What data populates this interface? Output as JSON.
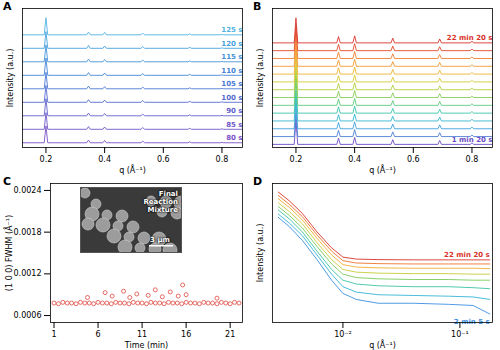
{
  "chart_data": [
    {
      "panel": "A",
      "type": "waterfall",
      "x_label": "q (Å⁻¹)",
      "y_label": "Intensity (a.u.)",
      "tick_labels": "x",
      "xlim": [
        0.12,
        0.87
      ],
      "xticks": [
        0.2,
        0.4,
        0.6,
        0.8
      ],
      "ylim": [
        -0.3,
        10
      ],
      "x": [
        0.12,
        0.194,
        0.2,
        0.206,
        0.339,
        0.345,
        0.351,
        0.394,
        0.4,
        0.406,
        0.524,
        0.53,
        0.536,
        0.684,
        0.69,
        0.696,
        0.794,
        0.8,
        0.806,
        0.87
      ],
      "series": [
        {
          "name": "80 s",
          "color": "#7b52c7",
          "values": [
            0.05,
            0.05,
            1.3,
            0.05,
            0.05,
            0.25,
            0.05,
            0.05,
            0.22,
            0.05,
            0.05,
            0.18,
            0.05,
            0.05,
            0.12,
            0.05,
            0.05,
            0.08,
            0.05,
            0.05
          ]
        },
        {
          "name": "85 s",
          "color": "#7058c9",
          "values": [
            0.05,
            0.05,
            1.28,
            0.05,
            0.05,
            0.25,
            0.05,
            0.05,
            0.22,
            0.05,
            0.05,
            0.18,
            0.05,
            0.05,
            0.12,
            0.05,
            0.05,
            0.08,
            0.05,
            0.05
          ]
        },
        {
          "name": "90 s",
          "color": "#6262cc",
          "values": [
            0.05,
            0.05,
            1.32,
            0.05,
            0.05,
            0.25,
            0.05,
            0.05,
            0.22,
            0.05,
            0.05,
            0.18,
            0.05,
            0.05,
            0.12,
            0.05,
            0.05,
            0.08,
            0.05,
            0.05
          ]
        },
        {
          "name": "100 s",
          "color": "#566dd0",
          "values": [
            0.05,
            0.05,
            1.3,
            0.05,
            0.05,
            0.24,
            0.05,
            0.05,
            0.22,
            0.05,
            0.05,
            0.18,
            0.05,
            0.05,
            0.12,
            0.05,
            0.05,
            0.08,
            0.05,
            0.05
          ]
        },
        {
          "name": "105 s",
          "color": "#4b79d3",
          "values": [
            0.05,
            0.05,
            1.27,
            0.05,
            0.05,
            0.25,
            0.05,
            0.05,
            0.21,
            0.05,
            0.05,
            0.18,
            0.05,
            0.05,
            0.12,
            0.05,
            0.05,
            0.08,
            0.05,
            0.05
          ]
        },
        {
          "name": "110 s",
          "color": "#4686d6",
          "values": [
            0.05,
            0.05,
            1.33,
            0.05,
            0.05,
            0.25,
            0.05,
            0.05,
            0.22,
            0.05,
            0.05,
            0.17,
            0.05,
            0.05,
            0.12,
            0.05,
            0.05,
            0.08,
            0.05,
            0.05
          ]
        },
        {
          "name": "115 s",
          "color": "#4594d9",
          "values": [
            0.05,
            0.05,
            1.3,
            0.05,
            0.05,
            0.25,
            0.05,
            0.05,
            0.22,
            0.05,
            0.05,
            0.18,
            0.05,
            0.05,
            0.11,
            0.05,
            0.05,
            0.08,
            0.05,
            0.05
          ]
        },
        {
          "name": "120 s",
          "color": "#48a3dd",
          "values": [
            0.05,
            0.05,
            1.29,
            0.05,
            0.05,
            0.26,
            0.05,
            0.05,
            0.22,
            0.05,
            0.05,
            0.18,
            0.05,
            0.05,
            0.12,
            0.05,
            0.05,
            0.08,
            0.05,
            0.05
          ]
        },
        {
          "name": "125 s",
          "color": "#52b3e2",
          "values": [
            0.05,
            0.05,
            1.31,
            0.05,
            0.05,
            0.25,
            0.05,
            0.05,
            0.23,
            0.05,
            0.05,
            0.18,
            0.05,
            0.05,
            0.12,
            0.05,
            0.05,
            0.08,
            0.05,
            0.05
          ]
        }
      ]
    },
    {
      "panel": "B",
      "type": "waterfall",
      "x_label": "q (Å⁻¹)",
      "y_label": "Intensity (a.u.)",
      "tick_labels": "x",
      "xlim": [
        0.12,
        0.87
      ],
      "xticks": [
        0.2,
        0.4,
        0.6,
        0.8
      ],
      "ylim": [
        -0.3,
        17.5
      ],
      "x": [
        0.12,
        0.194,
        0.2,
        0.206,
        0.339,
        0.345,
        0.351,
        0.394,
        0.4,
        0.406,
        0.524,
        0.53,
        0.536,
        0.684,
        0.69,
        0.696,
        0.794,
        0.8,
        0.806,
        0.87
      ],
      "series": [
        {
          "name": "1 min 20 s",
          "color": "#6a4cc4",
          "values": [
            0.1,
            0.1,
            3.2,
            0.1,
            0.1,
            0.9,
            0.1,
            0.1,
            1.0,
            0.1,
            0.1,
            0.7,
            0.1,
            0.1,
            0.6,
            0.1,
            0.1,
            0.3,
            0.1,
            0.1
          ]
        },
        {
          "color": "#4f7fd6",
          "values": [
            0.1,
            0.1,
            3.1,
            0.1,
            0.1,
            0.9,
            0.1,
            0.1,
            1.0,
            0.1,
            0.1,
            0.7,
            0.1,
            0.1,
            0.6,
            0.1,
            0.1,
            0.3,
            0.1,
            0.1
          ]
        },
        {
          "color": "#3fa0dc",
          "values": [
            0.1,
            0.1,
            3.3,
            0.1,
            0.1,
            0.9,
            0.1,
            0.1,
            1.0,
            0.1,
            0.1,
            0.7,
            0.1,
            0.1,
            0.6,
            0.1,
            0.1,
            0.3,
            0.1,
            0.1
          ]
        },
        {
          "color": "#36b8cf",
          "values": [
            0.1,
            0.1,
            3.2,
            0.1,
            0.1,
            0.9,
            0.1,
            0.1,
            1.0,
            0.1,
            0.1,
            0.7,
            0.1,
            0.1,
            0.6,
            0.1,
            0.1,
            0.3,
            0.1,
            0.1
          ]
        },
        {
          "color": "#3cc4a8",
          "values": [
            0.1,
            0.1,
            3.0,
            0.1,
            0.1,
            0.9,
            0.1,
            0.1,
            1.0,
            0.1,
            0.1,
            0.7,
            0.1,
            0.1,
            0.6,
            0.1,
            0.1,
            0.3,
            0.1,
            0.1
          ]
        },
        {
          "color": "#5cc97c",
          "values": [
            0.1,
            0.1,
            3.4,
            0.1,
            0.1,
            0.9,
            0.1,
            0.1,
            1.0,
            0.1,
            0.1,
            0.7,
            0.1,
            0.1,
            0.6,
            0.1,
            0.1,
            0.3,
            0.1,
            0.1
          ]
        },
        {
          "color": "#86cd57",
          "values": [
            0.1,
            0.1,
            3.2,
            0.1,
            0.1,
            0.9,
            0.1,
            0.1,
            1.0,
            0.1,
            0.1,
            0.7,
            0.1,
            0.1,
            0.6,
            0.1,
            0.1,
            0.3,
            0.1,
            0.1
          ]
        },
        {
          "color": "#b2cf3e",
          "values": [
            0.1,
            0.1,
            3.1,
            0.1,
            0.1,
            0.9,
            0.1,
            0.1,
            1.0,
            0.1,
            0.1,
            0.7,
            0.1,
            0.1,
            0.6,
            0.1,
            0.1,
            0.3,
            0.1,
            0.1
          ]
        },
        {
          "color": "#d7c936",
          "values": [
            0.1,
            0.1,
            3.3,
            0.1,
            0.1,
            0.9,
            0.1,
            0.1,
            1.0,
            0.1,
            0.1,
            0.7,
            0.1,
            0.1,
            0.6,
            0.1,
            0.1,
            0.3,
            0.1,
            0.1
          ]
        },
        {
          "color": "#ecb434",
          "values": [
            0.1,
            0.1,
            3.2,
            0.1,
            0.1,
            0.9,
            0.1,
            0.1,
            1.0,
            0.1,
            0.1,
            0.7,
            0.1,
            0.1,
            0.6,
            0.1,
            0.1,
            0.3,
            0.1,
            0.1
          ]
        },
        {
          "color": "#f39a33",
          "values": [
            0.1,
            0.1,
            3.1,
            0.1,
            0.1,
            0.9,
            0.1,
            0.1,
            1.0,
            0.1,
            0.1,
            0.7,
            0.1,
            0.1,
            0.6,
            0.1,
            0.1,
            0.3,
            0.1,
            0.1
          ]
        },
        {
          "color": "#f2802f",
          "values": [
            0.1,
            0.1,
            3.3,
            0.1,
            0.1,
            0.9,
            0.1,
            0.1,
            1.0,
            0.1,
            0.1,
            0.7,
            0.1,
            0.1,
            0.6,
            0.1,
            0.1,
            0.3,
            0.1,
            0.1
          ]
        },
        {
          "color": "#e34a28",
          "values": [
            0.1,
            0.1,
            3.2,
            0.1,
            0.1,
            0.9,
            0.1,
            0.1,
            1.0,
            0.1,
            0.1,
            0.7,
            0.1,
            0.1,
            0.6,
            0.1,
            0.1,
            0.3,
            0.1,
            0.1
          ]
        },
        {
          "name": "22 min 20 s",
          "color": "#d8332a",
          "values": [
            0.1,
            0.1,
            3.3,
            0.1,
            0.1,
            0.9,
            0.1,
            0.1,
            1.0,
            0.1,
            0.1,
            0.7,
            0.1,
            0.1,
            0.6,
            0.1,
            0.1,
            0.3,
            0.1,
            0.1
          ]
        }
      ]
    },
    {
      "panel": "C",
      "type": "scatter",
      "marker": "circle_open",
      "color": "#e0483f",
      "x_label": "Time (min)",
      "y_label": "(1 0 0) FWHM (Å⁻¹)",
      "xlim": [
        0.6,
        22.4
      ],
      "xticks": [
        1,
        6,
        11,
        16,
        21
      ],
      "ylim": [
        0.0005,
        0.0025
      ],
      "yticks": [
        0.0006,
        0.0012,
        0.0018,
        0.0024
      ],
      "x": [
        1,
        1.5,
        2,
        2.5,
        3,
        3.5,
        4,
        4.5,
        5,
        5.5,
        6,
        6.5,
        7,
        7.5,
        8,
        8.5,
        9,
        9.5,
        10,
        10.5,
        11,
        11.5,
        12,
        12.5,
        13,
        13.5,
        14,
        14.5,
        15,
        15.5,
        16,
        16.5,
        17,
        17.5,
        18,
        18.5,
        19,
        19.5,
        20,
        20.5,
        21,
        21.5,
        22,
        4.8,
        6.8,
        7.6,
        8.9,
        9.6,
        10.4,
        11.7,
        12.5,
        13.3,
        14.2,
        15.1,
        15.6,
        16.0,
        19.5
      ],
      "values": [
        0.00078,
        0.00077,
        0.00079,
        0.00078,
        0.00078,
        0.00077,
        0.00079,
        0.00078,
        0.00078,
        0.00077,
        0.00079,
        0.00078,
        0.00078,
        0.00077,
        0.00079,
        0.00078,
        0.00078,
        0.00077,
        0.00079,
        0.00078,
        0.00078,
        0.00077,
        0.00079,
        0.00078,
        0.00078,
        0.00077,
        0.00079,
        0.00078,
        0.00078,
        0.00077,
        0.00079,
        0.00078,
        0.00078,
        0.00077,
        0.00079,
        0.00078,
        0.00078,
        0.00077,
        0.00079,
        0.00078,
        0.00077,
        0.00079,
        0.00078,
        0.00086,
        0.00093,
        0.00088,
        0.00095,
        0.00086,
        0.00091,
        0.00089,
        0.00097,
        0.00087,
        0.00094,
        0.00088,
        0.00104,
        0.0009,
        0.00085
      ],
      "inset": {
        "text": "Final Reaction Mixture",
        "scale_bar": "3 µm"
      }
    },
    {
      "panel": "D",
      "type": "line",
      "log": true,
      "x_label": "q (Å⁻¹)",
      "y_label": "Intensity (a.u.)",
      "tick_labels": "x",
      "xlim": [
        0.0025,
        0.19
      ],
      "xticks": [
        {
          "value": 0.01,
          "label": "10⁻²"
        },
        {
          "value": 0.1,
          "label": "10⁻¹"
        }
      ],
      "ylim": [
        0.4,
        300
      ],
      "x": [
        0.0028,
        0.0035,
        0.0045,
        0.006,
        0.008,
        0.01,
        0.013,
        0.02,
        0.04,
        0.08,
        0.13,
        0.18
      ],
      "series": [
        {
          "name": "2 min 5 s",
          "color": "#3d8fe0",
          "values": [
            60,
            38,
            20,
            8,
            3,
            1.6,
            1.2,
            1.0,
            1.0,
            0.95,
            0.9,
            0.6
          ]
        },
        {
          "color": "#36b4d6",
          "values": [
            70,
            45,
            25,
            10,
            4,
            2.2,
            1.7,
            1.5,
            1.45,
            1.4,
            1.35,
            1.2
          ]
        },
        {
          "color": "#3cc4a0",
          "values": [
            85,
            55,
            30,
            12,
            5,
            3,
            2.5,
            2.3,
            2.2,
            2.2,
            2.1,
            2.0
          ]
        },
        {
          "color": "#7ccb5c",
          "values": [
            100,
            65,
            36,
            15,
            6.5,
            4,
            3.4,
            3.2,
            3.1,
            3.1,
            3.0,
            3.0
          ]
        },
        {
          "color": "#c4cc3a",
          "values": [
            120,
            78,
            44,
            18,
            8,
            5,
            4.4,
            4.2,
            4.1,
            4.1,
            4.0,
            4.0
          ]
        },
        {
          "color": "#efae34",
          "values": [
            145,
            95,
            53,
            22,
            10,
            6.3,
            5.6,
            5.4,
            5.3,
            5.3,
            5.3,
            5.2
          ]
        },
        {
          "color": "#ee742d",
          "values": [
            170,
            110,
            62,
            26,
            12,
            7.6,
            6.8,
            6.6,
            6.5,
            6.5,
            6.5,
            6.5
          ]
        },
        {
          "name": "22 min 20 s",
          "color": "#d8332a",
          "values": [
            200,
            130,
            72,
            30,
            14,
            9,
            8.2,
            8,
            7.9,
            7.9,
            7.9,
            7.9
          ]
        }
      ]
    }
  ]
}
